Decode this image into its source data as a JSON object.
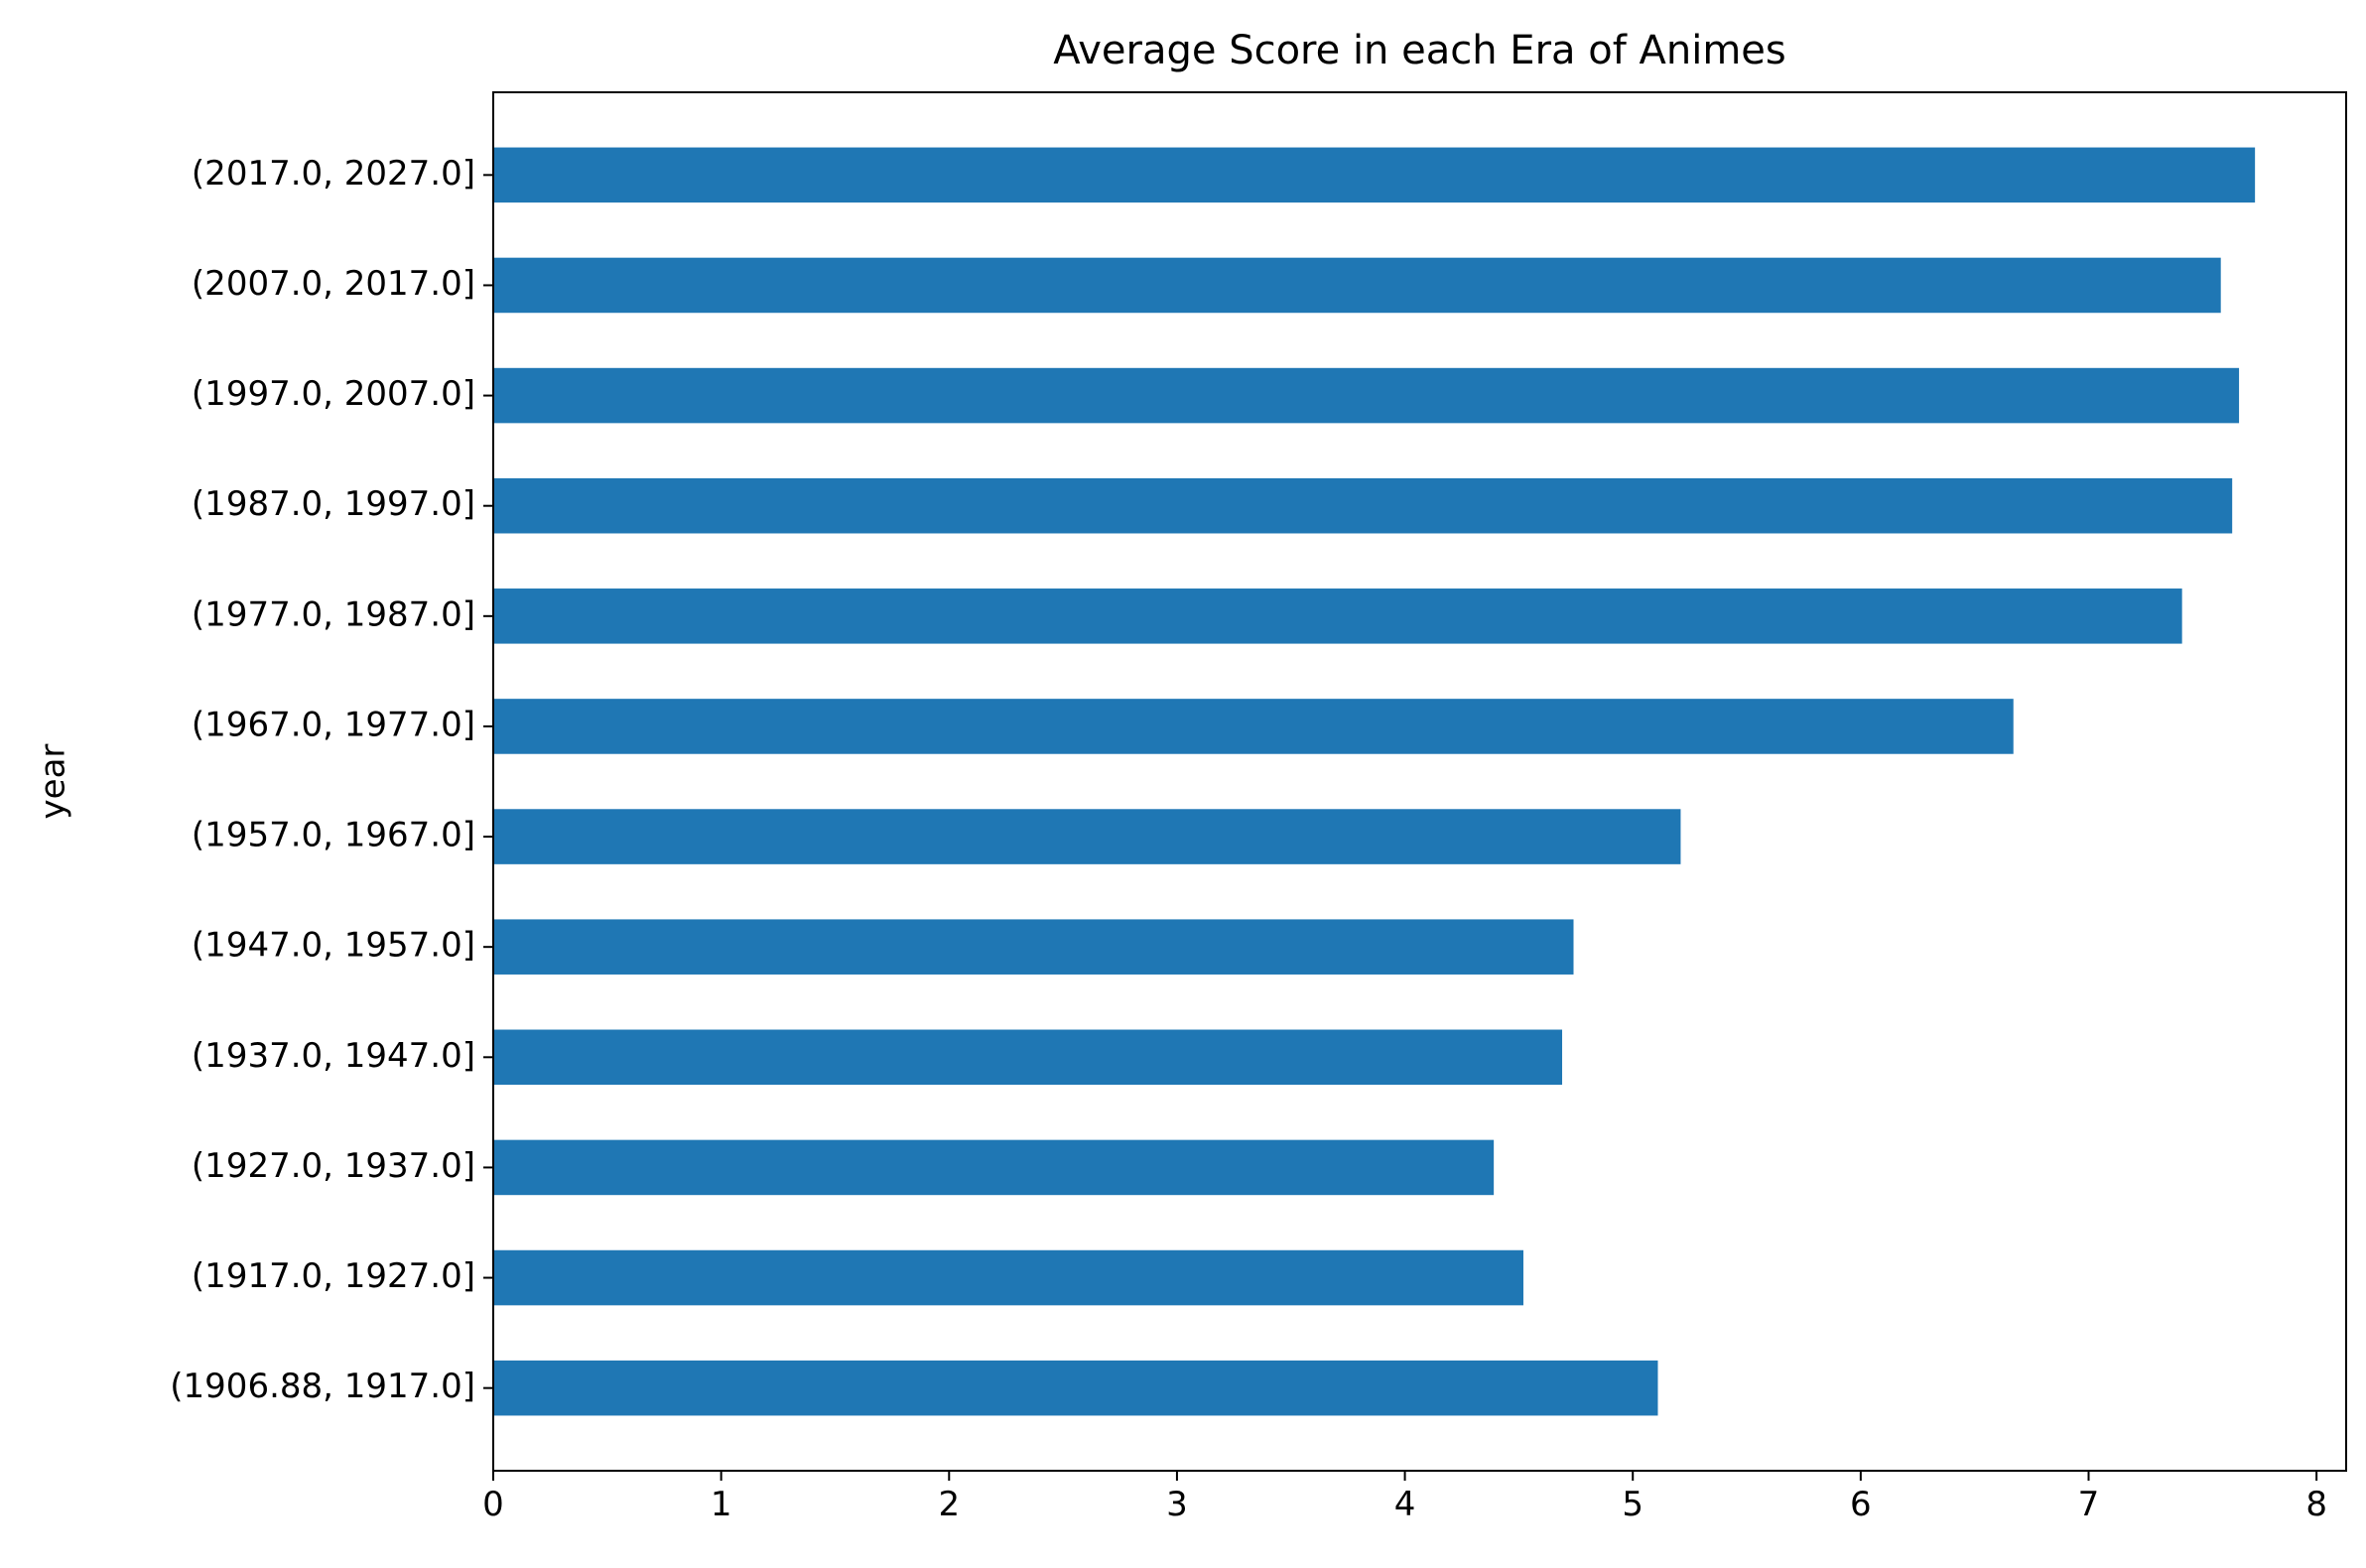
{
  "chart_data": {
    "type": "bar",
    "orientation": "horizontal",
    "title": "Average Score in each Era of Animes",
    "xlabel": "",
    "ylabel": "year",
    "categories": [
      "(1906.88, 1917.0]",
      "(1917.0, 1927.0]",
      "(1927.0, 1937.0]",
      "(1937.0, 1947.0]",
      "(1947.0, 1957.0]",
      "(1957.0, 1967.0]",
      "(1967.0, 1977.0]",
      "(1977.0, 1987.0]",
      "(1987.0, 1997.0]",
      "(1997.0, 2007.0]",
      "(2007.0, 2017.0]",
      "(2017.0, 2027.0]"
    ],
    "values": [
      5.11,
      4.52,
      4.39,
      4.69,
      4.74,
      5.21,
      6.67,
      7.41,
      7.63,
      7.66,
      7.58,
      7.73
    ],
    "xlim": [
      0,
      8.13
    ],
    "xticks": [
      "0",
      "1",
      "2",
      "3",
      "4",
      "5",
      "6",
      "7",
      "8"
    ],
    "grid": false,
    "legend": "none",
    "bar_color": "#1f77b4"
  }
}
